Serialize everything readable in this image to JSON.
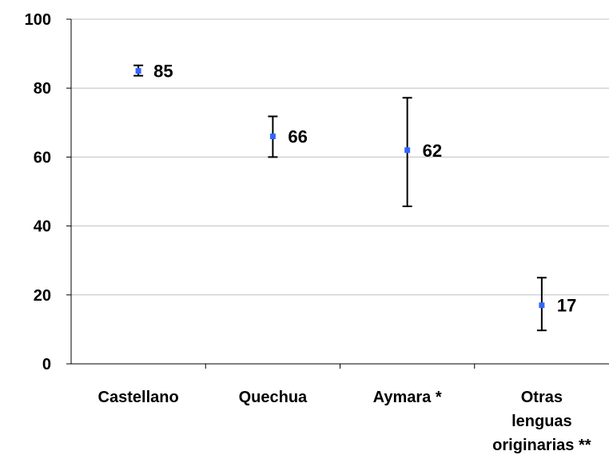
{
  "chart_data": {
    "type": "scatter",
    "categories": [
      "Castellano",
      "Quechua",
      "Aymara *",
      "Otras lenguas originarias **"
    ],
    "category_label_lines": [
      [
        "Castellano"
      ],
      [
        "Quechua"
      ],
      [
        "Aymara *"
      ],
      [
        "Otras",
        "lenguas",
        "originarias **"
      ]
    ],
    "values": [
      85,
      66,
      62,
      17
    ],
    "data_labels": [
      "85",
      "66",
      "62",
      "17"
    ],
    "error_low": [
      83.6,
      60,
      45.7,
      9.7
    ],
    "error_high": [
      86.6,
      71.8,
      77.2,
      25
    ],
    "ylim": [
      0,
      100
    ],
    "yticks": [
      0,
      20,
      40,
      60,
      80,
      100
    ],
    "ytick_labels": [
      "0",
      "20",
      "40",
      "60",
      "80",
      "100"
    ],
    "grid": true,
    "marker_color": "#3366ff",
    "errorbar_color": "#000000",
    "gridline_color": "#c0c0c0"
  }
}
